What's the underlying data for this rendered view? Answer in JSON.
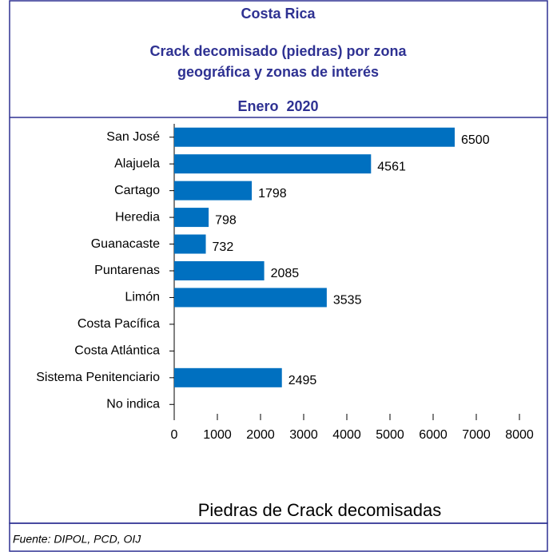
{
  "chart_data": {
    "type": "bar",
    "orientation": "horizontal",
    "title": "Costa Rica",
    "subtitle": [
      "Crack decomisado (piedras) por zona",
      "geográfica y zonas de interés"
    ],
    "period": "Enero  2020",
    "categories": [
      "San José",
      "Alajuela",
      "Cartago",
      "Heredia",
      "Guanacaste",
      "Puntarenas",
      "Limón",
      "Costa Pacífica",
      "Costa Atlántica",
      "Sistema Penitenciario",
      "No indica"
    ],
    "values": [
      6500,
      4561,
      1798,
      798,
      732,
      2085,
      3535,
      null,
      null,
      2495,
      null
    ],
    "color": "#0070c0",
    "xlim": [
      0,
      8000
    ],
    "xticks": [
      0,
      1000,
      2000,
      3000,
      4000,
      5000,
      6000,
      7000,
      8000
    ],
    "xlabel": "Piedras de Crack decomisadas",
    "source": "Fuente: DIPOL, PCD, OIJ"
  }
}
